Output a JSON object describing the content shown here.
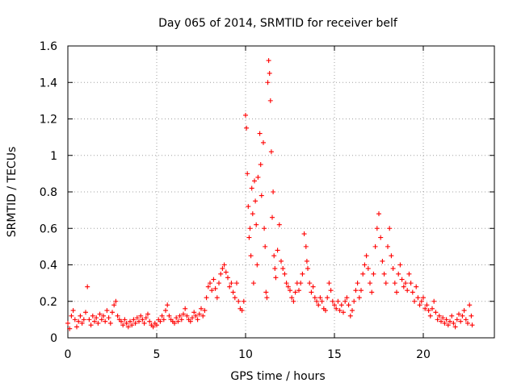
{
  "colors": {
    "series": "#ff0000",
    "grid": "#a0a0a0",
    "axis": "#000000"
  },
  "chart_data": {
    "type": "scatter",
    "title": "Day 065 of 2014, SRMTID for receiver belf",
    "xlabel": "GPS time / hours",
    "ylabel": "SRMTID / TECUs",
    "xlim": [
      0,
      24
    ],
    "ylim": [
      0,
      1.6
    ],
    "xticks": [
      0,
      5,
      10,
      15,
      20
    ],
    "xtick_labels": [
      "0",
      "5",
      "10",
      "15",
      "20"
    ],
    "yticks": [
      0,
      0.2,
      0.4,
      0.6,
      0.8,
      1,
      1.2,
      1.4,
      1.6
    ],
    "ytick_labels": [
      "0",
      "0.2",
      "0.4",
      "0.6",
      "0.8",
      "1",
      "1.2",
      "1.4",
      "1.6"
    ],
    "grid": true,
    "marker": "+",
    "series": [
      {
        "name": "SRMTID",
        "points": [
          [
            0.0,
            0.08
          ],
          [
            0.1,
            0.05
          ],
          [
            0.2,
            0.12
          ],
          [
            0.3,
            0.15
          ],
          [
            0.4,
            0.1
          ],
          [
            0.5,
            0.06
          ],
          [
            0.6,
            0.09
          ],
          [
            0.7,
            0.12
          ],
          [
            0.8,
            0.08
          ],
          [
            0.9,
            0.1
          ],
          [
            1.0,
            0.14
          ],
          [
            1.1,
            0.28
          ],
          [
            1.2,
            0.1
          ],
          [
            1.3,
            0.07
          ],
          [
            1.4,
            0.12
          ],
          [
            1.5,
            0.09
          ],
          [
            1.6,
            0.11
          ],
          [
            1.7,
            0.08
          ],
          [
            1.8,
            0.13
          ],
          [
            1.9,
            0.1
          ],
          [
            2.0,
            0.12
          ],
          [
            2.1,
            0.09
          ],
          [
            2.2,
            0.15
          ],
          [
            2.3,
            0.11
          ],
          [
            2.4,
            0.08
          ],
          [
            2.5,
            0.14
          ],
          [
            2.6,
            0.18
          ],
          [
            2.7,
            0.2
          ],
          [
            2.8,
            0.12
          ],
          [
            2.9,
            0.1
          ],
          [
            3.0,
            0.09
          ],
          [
            3.1,
            0.07
          ],
          [
            3.2,
            0.1
          ],
          [
            3.3,
            0.08
          ],
          [
            3.4,
            0.06
          ],
          [
            3.5,
            0.09
          ],
          [
            3.6,
            0.07
          ],
          [
            3.7,
            0.1
          ],
          [
            3.8,
            0.08
          ],
          [
            3.9,
            0.11
          ],
          [
            4.0,
            0.09
          ],
          [
            4.1,
            0.12
          ],
          [
            4.2,
            0.1
          ],
          [
            4.3,
            0.08
          ],
          [
            4.4,
            0.11
          ],
          [
            4.5,
            0.13
          ],
          [
            4.6,
            0.09
          ],
          [
            4.7,
            0.07
          ],
          [
            4.8,
            0.06
          ],
          [
            4.9,
            0.08
          ],
          [
            5.0,
            0.07
          ],
          [
            5.1,
            0.1
          ],
          [
            5.2,
            0.09
          ],
          [
            5.3,
            0.12
          ],
          [
            5.4,
            0.1
          ],
          [
            5.5,
            0.15
          ],
          [
            5.6,
            0.18
          ],
          [
            5.7,
            0.12
          ],
          [
            5.8,
            0.1
          ],
          [
            5.9,
            0.09
          ],
          [
            6.0,
            0.08
          ],
          [
            6.1,
            0.11
          ],
          [
            6.2,
            0.09
          ],
          [
            6.3,
            0.12
          ],
          [
            6.4,
            0.1
          ],
          [
            6.5,
            0.13
          ],
          [
            6.6,
            0.16
          ],
          [
            6.7,
            0.12
          ],
          [
            6.8,
            0.1
          ],
          [
            6.9,
            0.09
          ],
          [
            7.0,
            0.11
          ],
          [
            7.1,
            0.14
          ],
          [
            7.2,
            0.12
          ],
          [
            7.3,
            0.1
          ],
          [
            7.4,
            0.13
          ],
          [
            7.5,
            0.16
          ],
          [
            7.6,
            0.12
          ],
          [
            7.7,
            0.15
          ],
          [
            7.8,
            0.22
          ],
          [
            7.9,
            0.28
          ],
          [
            8.0,
            0.3
          ],
          [
            8.1,
            0.26
          ],
          [
            8.2,
            0.32
          ],
          [
            8.3,
            0.27
          ],
          [
            8.4,
            0.22
          ],
          [
            8.5,
            0.3
          ],
          [
            8.6,
            0.35
          ],
          [
            8.7,
            0.38
          ],
          [
            8.8,
            0.4
          ],
          [
            8.9,
            0.36
          ],
          [
            9.0,
            0.33
          ],
          [
            9.1,
            0.28
          ],
          [
            9.2,
            0.3
          ],
          [
            9.3,
            0.25
          ],
          [
            9.4,
            0.22
          ],
          [
            9.5,
            0.3
          ],
          [
            9.6,
            0.2
          ],
          [
            9.7,
            0.16
          ],
          [
            9.8,
            0.15
          ],
          [
            9.9,
            0.2
          ],
          [
            10.0,
            1.22
          ],
          [
            10.05,
            1.15
          ],
          [
            10.1,
            0.9
          ],
          [
            10.15,
            0.72
          ],
          [
            10.2,
            0.55
          ],
          [
            10.25,
            0.6
          ],
          [
            10.3,
            0.45
          ],
          [
            10.35,
            0.82
          ],
          [
            10.4,
            0.68
          ],
          [
            10.45,
            0.3
          ],
          [
            10.5,
            0.86
          ],
          [
            10.55,
            0.75
          ],
          [
            10.6,
            0.62
          ],
          [
            10.65,
            0.4
          ],
          [
            10.7,
            0.88
          ],
          [
            10.8,
            1.12
          ],
          [
            10.85,
            0.95
          ],
          [
            10.9,
            0.78
          ],
          [
            11.0,
            1.07
          ],
          [
            11.05,
            0.6
          ],
          [
            11.1,
            0.5
          ],
          [
            11.15,
            0.25
          ],
          [
            11.2,
            0.22
          ],
          [
            11.25,
            1.4
          ],
          [
            11.3,
            1.52
          ],
          [
            11.35,
            1.45
          ],
          [
            11.4,
            1.3
          ],
          [
            11.45,
            1.02
          ],
          [
            11.5,
            0.66
          ],
          [
            11.55,
            0.8
          ],
          [
            11.6,
            0.45
          ],
          [
            11.65,
            0.38
          ],
          [
            11.7,
            0.33
          ],
          [
            11.8,
            0.48
          ],
          [
            11.9,
            0.62
          ],
          [
            12.0,
            0.42
          ],
          [
            12.1,
            0.38
          ],
          [
            12.2,
            0.35
          ],
          [
            12.3,
            0.3
          ],
          [
            12.4,
            0.28
          ],
          [
            12.5,
            0.26
          ],
          [
            12.6,
            0.22
          ],
          [
            12.7,
            0.2
          ],
          [
            12.8,
            0.25
          ],
          [
            12.9,
            0.3
          ],
          [
            13.0,
            0.26
          ],
          [
            13.1,
            0.3
          ],
          [
            13.2,
            0.35
          ],
          [
            13.3,
            0.57
          ],
          [
            13.4,
            0.5
          ],
          [
            13.45,
            0.42
          ],
          [
            13.5,
            0.38
          ],
          [
            13.6,
            0.3
          ],
          [
            13.7,
            0.25
          ],
          [
            13.8,
            0.28
          ],
          [
            13.9,
            0.22
          ],
          [
            14.0,
            0.2
          ],
          [
            14.1,
            0.18
          ],
          [
            14.2,
            0.22
          ],
          [
            14.3,
            0.2
          ],
          [
            14.4,
            0.16
          ],
          [
            14.5,
            0.15
          ],
          [
            14.6,
            0.22
          ],
          [
            14.7,
            0.3
          ],
          [
            14.8,
            0.26
          ],
          [
            14.9,
            0.2
          ],
          [
            15.0,
            0.18
          ],
          [
            15.1,
            0.16
          ],
          [
            15.2,
            0.2
          ],
          [
            15.3,
            0.15
          ],
          [
            15.4,
            0.18
          ],
          [
            15.5,
            0.14
          ],
          [
            15.6,
            0.2
          ],
          [
            15.7,
            0.22
          ],
          [
            15.8,
            0.18
          ],
          [
            15.9,
            0.12
          ],
          [
            16.0,
            0.15
          ],
          [
            16.1,
            0.2
          ],
          [
            16.2,
            0.26
          ],
          [
            16.3,
            0.3
          ],
          [
            16.4,
            0.22
          ],
          [
            16.5,
            0.26
          ],
          [
            16.6,
            0.35
          ],
          [
            16.7,
            0.4
          ],
          [
            16.8,
            0.45
          ],
          [
            16.9,
            0.38
          ],
          [
            17.0,
            0.3
          ],
          [
            17.1,
            0.25
          ],
          [
            17.2,
            0.35
          ],
          [
            17.3,
            0.5
          ],
          [
            17.4,
            0.6
          ],
          [
            17.5,
            0.68
          ],
          [
            17.6,
            0.55
          ],
          [
            17.7,
            0.42
          ],
          [
            17.8,
            0.35
          ],
          [
            17.9,
            0.3
          ],
          [
            18.0,
            0.5
          ],
          [
            18.1,
            0.6
          ],
          [
            18.2,
            0.45
          ],
          [
            18.3,
            0.38
          ],
          [
            18.4,
            0.3
          ],
          [
            18.5,
            0.25
          ],
          [
            18.6,
            0.35
          ],
          [
            18.7,
            0.4
          ],
          [
            18.8,
            0.32
          ],
          [
            18.9,
            0.28
          ],
          [
            19.0,
            0.3
          ],
          [
            19.1,
            0.26
          ],
          [
            19.2,
            0.35
          ],
          [
            19.3,
            0.3
          ],
          [
            19.4,
            0.25
          ],
          [
            19.5,
            0.2
          ],
          [
            19.6,
            0.28
          ],
          [
            19.7,
            0.22
          ],
          [
            19.8,
            0.18
          ],
          [
            19.9,
            0.2
          ],
          [
            20.0,
            0.22
          ],
          [
            20.1,
            0.16
          ],
          [
            20.2,
            0.18
          ],
          [
            20.3,
            0.15
          ],
          [
            20.4,
            0.12
          ],
          [
            20.5,
            0.16
          ],
          [
            20.6,
            0.2
          ],
          [
            20.7,
            0.14
          ],
          [
            20.8,
            0.1
          ],
          [
            20.9,
            0.12
          ],
          [
            21.0,
            0.09
          ],
          [
            21.1,
            0.11
          ],
          [
            21.2,
            0.08
          ],
          [
            21.3,
            0.1
          ],
          [
            21.4,
            0.07
          ],
          [
            21.5,
            0.09
          ],
          [
            21.6,
            0.12
          ],
          [
            21.7,
            0.08
          ],
          [
            21.8,
            0.06
          ],
          [
            21.9,
            0.1
          ],
          [
            22.0,
            0.13
          ],
          [
            22.1,
            0.09
          ],
          [
            22.2,
            0.12
          ],
          [
            22.3,
            0.15
          ],
          [
            22.4,
            0.1
          ],
          [
            22.5,
            0.08
          ],
          [
            22.6,
            0.18
          ],
          [
            22.7,
            0.12
          ],
          [
            22.75,
            0.07
          ]
        ]
      }
    ]
  }
}
